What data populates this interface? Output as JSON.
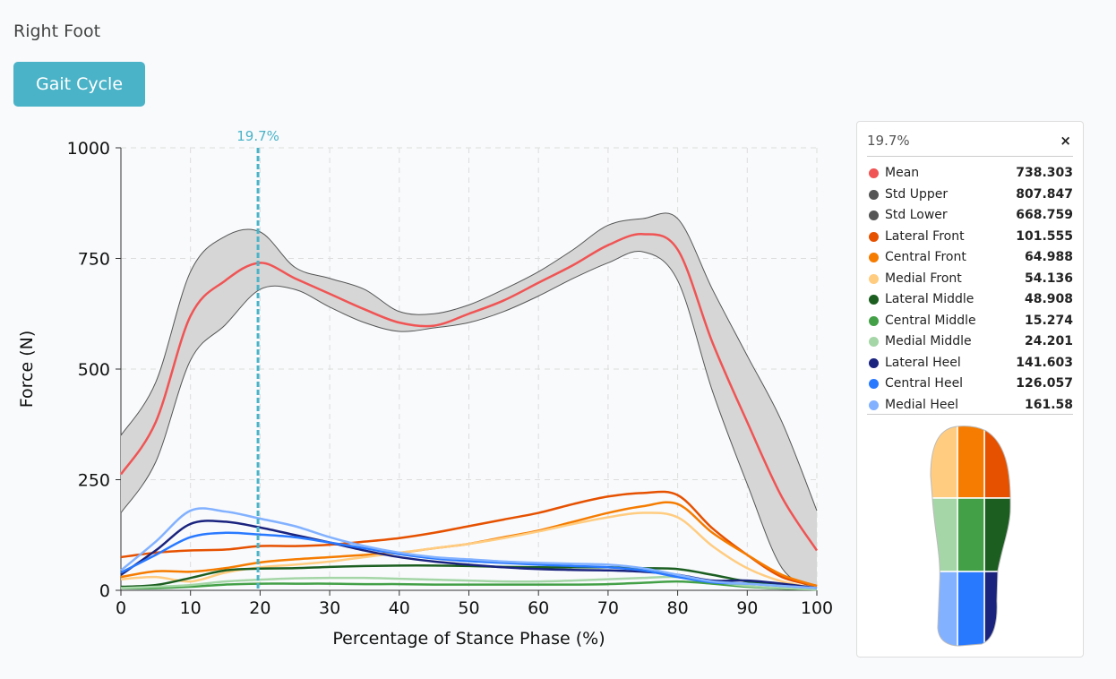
{
  "header": {
    "title": "Right Foot"
  },
  "button": {
    "label": "Gait Cycle"
  },
  "panel": {
    "close": "×"
  },
  "chart_data": {
    "type": "line",
    "xlabel": "Percentage of Stance Phase (%)",
    "ylabel": "Force (N)",
    "x": [
      0,
      5,
      10,
      15,
      20,
      25,
      30,
      35,
      40,
      45,
      50,
      55,
      60,
      65,
      70,
      75,
      80,
      85,
      90,
      95,
      100
    ],
    "xlim": [
      0,
      100
    ],
    "xticks": [
      0,
      10,
      20,
      30,
      40,
      50,
      60,
      70,
      80,
      90,
      100
    ],
    "ylim": [
      0,
      1000
    ],
    "yticks": [
      0,
      250,
      500,
      750,
      1000
    ],
    "grid": true,
    "cursor": {
      "value": 19.7,
      "label": "19.7%"
    },
    "cursor_values": [
      738.303,
      807.847,
      668.759,
      101.555,
      64.988,
      54.136,
      48.908,
      15.274,
      24.201,
      141.603,
      126.057,
      161.58
    ],
    "series": [
      {
        "name": "Mean",
        "color": "#f05454",
        "values": [
          262,
          380,
          620,
          700,
          740,
          705,
          670,
          635,
          605,
          598,
          625,
          655,
          695,
          735,
          780,
          805,
          770,
          560,
          380,
          210,
          90
        ]
      },
      {
        "name": "Std Upper",
        "color": "#555555",
        "values": [
          350,
          470,
          720,
          800,
          810,
          730,
          705,
          680,
          630,
          625,
          645,
          680,
          720,
          770,
          825,
          840,
          840,
          680,
          530,
          380,
          180
        ]
      },
      {
        "name": "Std Lower",
        "color": "#555555",
        "values": [
          175,
          290,
          520,
          600,
          680,
          680,
          640,
          605,
          585,
          593,
          605,
          630,
          665,
          705,
          740,
          765,
          700,
          450,
          240,
          50,
          5
        ]
      },
      {
        "name": "Lateral Front",
        "color": "#e65100",
        "values": [
          75,
          85,
          90,
          92,
          100,
          100,
          103,
          110,
          118,
          130,
          145,
          160,
          175,
          195,
          212,
          220,
          215,
          140,
          80,
          30,
          10
        ]
      },
      {
        "name": "Central Front",
        "color": "#f57c00",
        "values": [
          30,
          43,
          42,
          50,
          63,
          70,
          75,
          80,
          85,
          95,
          105,
          120,
          135,
          155,
          175,
          190,
          195,
          130,
          80,
          35,
          10
        ]
      },
      {
        "name": "Medial Front",
        "color": "#ffcc80",
        "values": [
          25,
          30,
          20,
          40,
          52,
          58,
          65,
          75,
          85,
          95,
          105,
          118,
          133,
          150,
          165,
          175,
          165,
          100,
          50,
          20,
          5
        ]
      },
      {
        "name": "Lateral Middle",
        "color": "#1b5e20",
        "values": [
          8,
          12,
          28,
          45,
          49,
          50,
          53,
          55,
          56,
          56,
          55,
          53,
          52,
          52,
          52,
          50,
          48,
          35,
          20,
          12,
          5
        ]
      },
      {
        "name": "Central Middle",
        "color": "#43a047",
        "values": [
          5,
          5,
          8,
          13,
          15,
          15,
          15,
          14,
          14,
          13,
          13,
          13,
          13,
          13,
          14,
          17,
          20,
          15,
          8,
          4,
          2
        ]
      },
      {
        "name": "Medial Middle",
        "color": "#a5d6a7",
        "values": [
          5,
          8,
          12,
          20,
          24,
          27,
          28,
          28,
          26,
          24,
          22,
          20,
          20,
          22,
          25,
          28,
          30,
          20,
          10,
          5,
          2
        ]
      },
      {
        "name": "Lateral Heel",
        "color": "#1a237e",
        "values": [
          35,
          90,
          150,
          155,
          142,
          125,
          108,
          90,
          75,
          65,
          58,
          52,
          48,
          46,
          45,
          42,
          35,
          22,
          22,
          15,
          5
        ]
      },
      {
        "name": "Central Heel",
        "color": "#2979ff",
        "values": [
          40,
          80,
          120,
          130,
          126,
          120,
          108,
          95,
          82,
          72,
          66,
          62,
          58,
          55,
          52,
          45,
          30,
          18,
          15,
          10,
          5
        ]
      },
      {
        "name": "Medial Heel",
        "color": "#82b1ff",
        "values": [
          45,
          110,
          180,
          178,
          162,
          145,
          120,
          100,
          85,
          75,
          70,
          65,
          62,
          60,
          58,
          50,
          35,
          20,
          15,
          10,
          5
        ]
      }
    ]
  }
}
